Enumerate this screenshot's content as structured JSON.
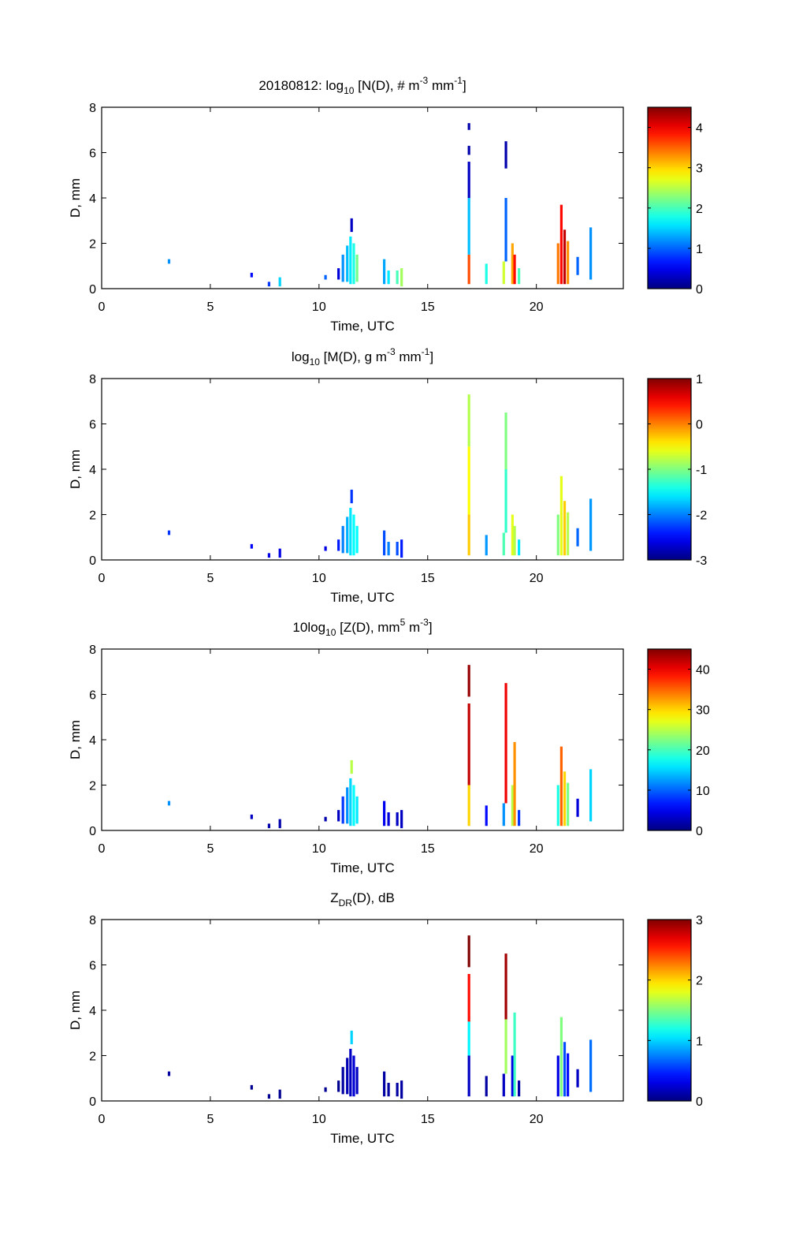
{
  "chart_data": [
    {
      "type": "heatmap",
      "title": "20180812: log10 [N(D), # m-3 mm-1]",
      "title_parts": {
        "prefix": "20180812: log",
        "sub": "10",
        "mid1": " [N(D), # m",
        "sup1": "-3",
        "mid2": " mm",
        "sup2": "-1",
        "suffix": "]"
      },
      "xlabel": "Time, UTC",
      "ylabel": "D, mm",
      "xlim": [
        0,
        24
      ],
      "ylim": [
        0,
        8
      ],
      "xticks": [
        "0",
        "5",
        "10",
        "15",
        "20"
      ],
      "xtick_values": [
        0,
        5,
        10,
        15,
        20
      ],
      "yticks": [
        "0",
        "2",
        "4",
        "6",
        "8"
      ],
      "ytick_values": [
        0,
        2,
        4,
        6,
        8
      ],
      "colorbar": {
        "range": [
          0,
          4.5
        ],
        "ticks": [
          "0",
          "1",
          "2",
          "3",
          "4"
        ],
        "tick_values": [
          0,
          1,
          2,
          3,
          4
        ],
        "colormap": "jet"
      },
      "cells": [
        [
          3.1,
          1.1,
          1.3,
          1.2
        ],
        [
          6.9,
          0.5,
          0.7,
          0.6
        ],
        [
          7.7,
          0.1,
          0.3,
          0.8
        ],
        [
          8.2,
          0.1,
          0.5,
          1.5
        ],
        [
          10.3,
          0.4,
          0.6,
          1.0
        ],
        [
          10.9,
          0.4,
          0.9,
          0.4
        ],
        [
          11.1,
          0.3,
          1.5,
          1.2
        ],
        [
          11.3,
          0.3,
          1.9,
          1.4
        ],
        [
          11.45,
          0.2,
          2.3,
          1.6
        ],
        [
          11.6,
          0.2,
          2.0,
          1.8
        ],
        [
          11.75,
          0.3,
          1.5,
          2.2
        ],
        [
          11.5,
          2.5,
          3.1,
          0.3
        ],
        [
          13.0,
          0.2,
          1.3,
          1.3
        ],
        [
          13.2,
          0.2,
          0.8,
          1.6
        ],
        [
          13.6,
          0.2,
          0.8,
          2.0
        ],
        [
          13.8,
          0.1,
          0.9,
          2.4
        ],
        [
          16.9,
          0.2,
          1.5,
          3.6
        ],
        [
          16.9,
          1.5,
          4.0,
          1.4
        ],
        [
          16.9,
          4.0,
          5.6,
          0.3
        ],
        [
          16.9,
          5.9,
          6.3,
          0.2
        ],
        [
          16.9,
          7.0,
          7.3,
          0.2
        ],
        [
          17.7,
          0.2,
          1.1,
          1.8
        ],
        [
          18.5,
          0.2,
          1.2,
          2.6
        ],
        [
          18.6,
          1.2,
          4.0,
          1.0
        ],
        [
          18.6,
          5.3,
          6.5,
          0.2
        ],
        [
          18.9,
          0.2,
          2.0,
          3.2
        ],
        [
          19.0,
          0.2,
          1.5,
          3.9
        ],
        [
          19.2,
          0.2,
          0.9,
          2.0
        ],
        [
          21.0,
          0.2,
          2.0,
          3.4
        ],
        [
          21.15,
          0.2,
          3.7,
          3.9
        ],
        [
          21.3,
          0.2,
          2.6,
          4.2
        ],
        [
          21.45,
          0.2,
          2.1,
          3.3
        ],
        [
          21.9,
          0.6,
          1.4,
          1.0
        ],
        [
          22.5,
          0.4,
          2.7,
          1.2
        ]
      ]
    },
    {
      "type": "heatmap",
      "title": "log10 [M(D), g m-3 mm-1]",
      "title_parts": {
        "prefix": "log",
        "sub": "10",
        "mid1": " [M(D), g m",
        "sup1": "-3",
        "mid2": " mm",
        "sup2": "-1",
        "suffix": "]"
      },
      "xlabel": "Time, UTC",
      "ylabel": "D, mm",
      "xlim": [
        0,
        24
      ],
      "ylim": [
        0,
        8
      ],
      "xticks": [
        "0",
        "5",
        "10",
        "15",
        "20"
      ],
      "xtick_values": [
        0,
        5,
        10,
        15,
        20
      ],
      "yticks": [
        "0",
        "2",
        "4",
        "6",
        "8"
      ],
      "ytick_values": [
        0,
        2,
        4,
        6,
        8
      ],
      "colorbar": {
        "range": [
          -3,
          1
        ],
        "ticks": [
          "1",
          "0",
          "-1",
          "-2",
          "-3"
        ],
        "tick_values": [
          1,
          0,
          -1,
          -2,
          -3
        ],
        "colormap": "jet"
      },
      "cells": [
        [
          3.1,
          1.1,
          1.3,
          -2.3
        ],
        [
          6.9,
          0.5,
          0.7,
          -2.5
        ],
        [
          7.7,
          0.1,
          0.3,
          -2.6
        ],
        [
          8.2,
          0.1,
          0.5,
          -2.6
        ],
        [
          10.3,
          0.4,
          0.6,
          -2.6
        ],
        [
          10.9,
          0.4,
          0.9,
          -2.4
        ],
        [
          11.1,
          0.3,
          1.5,
          -2.0
        ],
        [
          11.3,
          0.3,
          1.9,
          -1.8
        ],
        [
          11.45,
          0.2,
          2.3,
          -1.6
        ],
        [
          11.6,
          0.2,
          2.0,
          -1.5
        ],
        [
          11.75,
          0.3,
          1.5,
          -1.5
        ],
        [
          11.5,
          2.5,
          3.1,
          -2.3
        ],
        [
          13.0,
          0.2,
          1.3,
          -2.2
        ],
        [
          13.2,
          0.2,
          0.8,
          -2.0
        ],
        [
          13.6,
          0.2,
          0.8,
          -2.2
        ],
        [
          13.8,
          0.1,
          0.9,
          -2.4
        ],
        [
          16.9,
          0.2,
          2.0,
          -0.3
        ],
        [
          16.9,
          2.0,
          5.0,
          -0.5
        ],
        [
          16.9,
          5.0,
          7.3,
          -0.8
        ],
        [
          17.7,
          0.2,
          1.1,
          -1.9
        ],
        [
          18.5,
          0.2,
          1.2,
          -1.2
        ],
        [
          18.6,
          1.2,
          4.0,
          -1.3
        ],
        [
          18.6,
          4.0,
          6.5,
          -1.0
        ],
        [
          18.9,
          0.2,
          2.0,
          -0.6
        ],
        [
          19.0,
          0.2,
          1.5,
          -0.8
        ],
        [
          19.2,
          0.2,
          0.9,
          -1.6
        ],
        [
          21.0,
          0.2,
          2.0,
          -1.0
        ],
        [
          21.15,
          0.2,
          3.7,
          -0.6
        ],
        [
          21.3,
          0.2,
          2.6,
          -0.3
        ],
        [
          21.45,
          0.2,
          2.1,
          -0.8
        ],
        [
          21.9,
          0.6,
          1.4,
          -2.1
        ],
        [
          22.5,
          0.4,
          2.7,
          -1.9
        ]
      ]
    },
    {
      "type": "heatmap",
      "title": "10log10 [Z(D), mm5 m-3]",
      "title_parts": {
        "prefix": "10log",
        "sub": "10",
        "mid1": " [Z(D),  mm",
        "sup1": "5",
        "mid2": " m",
        "sup2": "-3",
        "suffix": "]"
      },
      "xlabel": "Time, UTC",
      "ylabel": "D, mm",
      "xlim": [
        0,
        24
      ],
      "ylim": [
        0,
        8
      ],
      "xticks": [
        "0",
        "5",
        "10",
        "15",
        "20"
      ],
      "xtick_values": [
        0,
        5,
        10,
        15,
        20
      ],
      "yticks": [
        "0",
        "2",
        "4",
        "6",
        "8"
      ],
      "ytick_values": [
        0,
        2,
        4,
        6,
        8
      ],
      "colorbar": {
        "range": [
          0,
          45
        ],
        "ticks": [
          "0",
          "10",
          "20",
          "30",
          "40"
        ],
        "tick_values": [
          0,
          10,
          20,
          30,
          40
        ],
        "colormap": "jet"
      },
      "cells": [
        [
          3.1,
          1.1,
          1.3,
          12
        ],
        [
          6.9,
          0.5,
          0.7,
          3
        ],
        [
          7.7,
          0.1,
          0.3,
          2
        ],
        [
          8.2,
          0.1,
          0.5,
          2
        ],
        [
          10.3,
          0.4,
          0.6,
          2
        ],
        [
          10.9,
          0.4,
          0.9,
          3
        ],
        [
          11.1,
          0.3,
          1.5,
          8
        ],
        [
          11.3,
          0.3,
          1.9,
          12
        ],
        [
          11.45,
          0.2,
          2.3,
          15
        ],
        [
          11.6,
          0.2,
          2.0,
          17
        ],
        [
          11.75,
          0.3,
          1.5,
          16
        ],
        [
          11.5,
          2.5,
          3.1,
          25
        ],
        [
          13.0,
          0.2,
          1.3,
          5
        ],
        [
          13.2,
          0.2,
          0.8,
          4
        ],
        [
          13.6,
          0.2,
          0.8,
          3
        ],
        [
          13.8,
          0.1,
          0.9,
          3
        ],
        [
          16.9,
          0.2,
          2.0,
          30
        ],
        [
          16.9,
          2.0,
          5.6,
          42
        ],
        [
          16.9,
          5.9,
          7.3,
          44
        ],
        [
          17.7,
          0.2,
          1.1,
          6
        ],
        [
          18.5,
          0.2,
          1.2,
          12
        ],
        [
          18.6,
          1.2,
          6.5,
          40
        ],
        [
          18.9,
          0.2,
          2.0,
          25
        ],
        [
          19.0,
          0.2,
          3.9,
          33
        ],
        [
          19.2,
          0.2,
          0.9,
          8
        ],
        [
          21.0,
          0.2,
          2.0,
          18
        ],
        [
          21.15,
          0.2,
          3.7,
          35
        ],
        [
          21.3,
          0.2,
          2.6,
          30
        ],
        [
          21.45,
          0.2,
          2.1,
          22
        ],
        [
          21.9,
          0.6,
          1.4,
          4
        ],
        [
          22.5,
          0.4,
          2.7,
          15
        ]
      ]
    },
    {
      "type": "heatmap",
      "title": "ZDR(D), dB",
      "title_parts": {
        "prefix": "Z",
        "sub": "DR",
        "mid1": "(D), dB",
        "sup1": "",
        "mid2": "",
        "sup2": "",
        "suffix": ""
      },
      "xlabel": "Time, UTC",
      "ylabel": "D, mm",
      "xlim": [
        0,
        24
      ],
      "ylim": [
        0,
        8
      ],
      "xticks": [
        "0",
        "5",
        "10",
        "15",
        "20"
      ],
      "xtick_values": [
        0,
        5,
        10,
        15,
        20
      ],
      "yticks": [
        "0",
        "2",
        "4",
        "6",
        "8"
      ],
      "ytick_values": [
        0,
        2,
        4,
        6,
        8
      ],
      "colorbar": {
        "range": [
          0,
          3
        ],
        "ticks": [
          "3",
          "2",
          "1",
          "0"
        ],
        "tick_values": [
          3,
          2,
          1,
          0
        ],
        "colormap": "jet"
      },
      "cells": [
        [
          3.1,
          1.1,
          1.3,
          0.1
        ],
        [
          6.9,
          0.5,
          0.7,
          0.05
        ],
        [
          7.7,
          0.1,
          0.3,
          0.05
        ],
        [
          8.2,
          0.1,
          0.5,
          0.05
        ],
        [
          10.3,
          0.4,
          0.6,
          0.05
        ],
        [
          10.9,
          0.4,
          0.9,
          0.05
        ],
        [
          11.1,
          0.3,
          1.5,
          0.1
        ],
        [
          11.3,
          0.3,
          1.9,
          0.15
        ],
        [
          11.45,
          0.2,
          2.3,
          0.2
        ],
        [
          11.6,
          0.2,
          2.0,
          0.25
        ],
        [
          11.75,
          0.3,
          1.5,
          0.2
        ],
        [
          11.5,
          2.5,
          3.1,
          1.0
        ],
        [
          13.0,
          0.2,
          1.3,
          0.1
        ],
        [
          13.2,
          0.2,
          0.8,
          0.1
        ],
        [
          13.6,
          0.2,
          0.8,
          0.1
        ],
        [
          13.8,
          0.1,
          0.9,
          0.1
        ],
        [
          16.9,
          0.2,
          2.0,
          0.2
        ],
        [
          16.9,
          2.0,
          3.5,
          1.1
        ],
        [
          16.9,
          3.5,
          5.6,
          2.6
        ],
        [
          16.9,
          5.9,
          7.3,
          3.0
        ],
        [
          17.7,
          0.2,
          1.1,
          0.1
        ],
        [
          18.5,
          0.2,
          1.2,
          0.2
        ],
        [
          18.6,
          1.2,
          3.6,
          1.6
        ],
        [
          18.6,
          3.6,
          6.5,
          2.9
        ],
        [
          18.9,
          0.2,
          2.0,
          0.3
        ],
        [
          19.0,
          0.2,
          3.9,
          1.3
        ],
        [
          19.2,
          0.2,
          0.9,
          0.1
        ],
        [
          21.0,
          0.2,
          2.0,
          0.3
        ],
        [
          21.15,
          0.2,
          3.7,
          1.5
        ],
        [
          21.3,
          0.2,
          2.6,
          0.6
        ],
        [
          21.45,
          0.2,
          2.1,
          0.4
        ],
        [
          21.9,
          0.6,
          1.4,
          0.2
        ],
        [
          22.5,
          0.4,
          2.7,
          0.7
        ]
      ]
    }
  ]
}
